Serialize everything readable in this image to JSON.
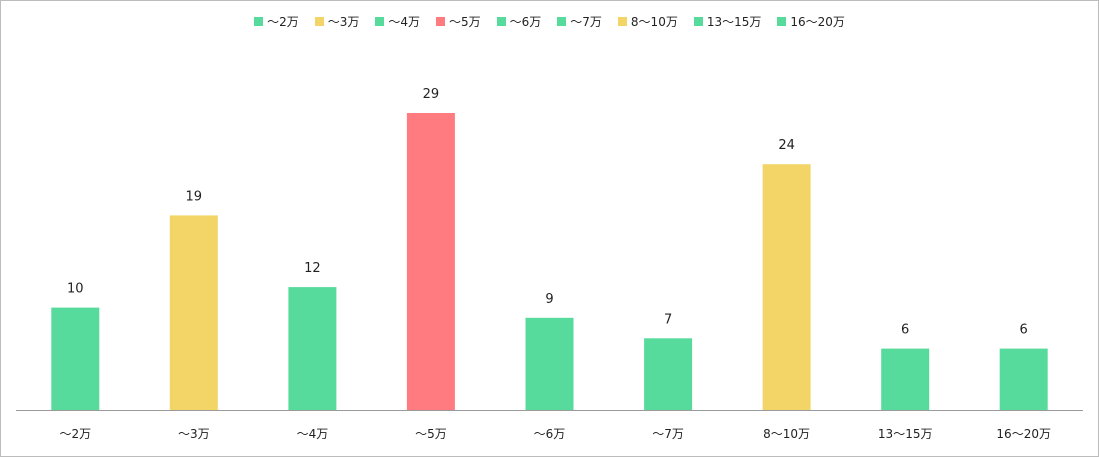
{
  "chart_data": {
    "type": "bar",
    "categories": [
      "～2万",
      "～3万",
      "～4万",
      "～5万",
      "～6万",
      "～7万",
      "8～10万",
      "13～15万",
      "16～20万"
    ],
    "values": [
      10,
      19,
      12,
      29,
      9,
      7,
      24,
      6,
      6
    ],
    "colors": [
      "#57db9c",
      "#f2d566",
      "#57db9c",
      "#ff7b7f",
      "#57db9c",
      "#57db9c",
      "#f2d566",
      "#57db9c",
      "#57db9c"
    ],
    "legend": [
      "～2万",
      "～3万",
      "～4万",
      "～5万",
      "～6万",
      "～7万",
      "8～10万",
      "13～15万",
      "16～20万"
    ],
    "legend_position": "top-center",
    "ylim": [
      0,
      29
    ],
    "grid": false
  }
}
